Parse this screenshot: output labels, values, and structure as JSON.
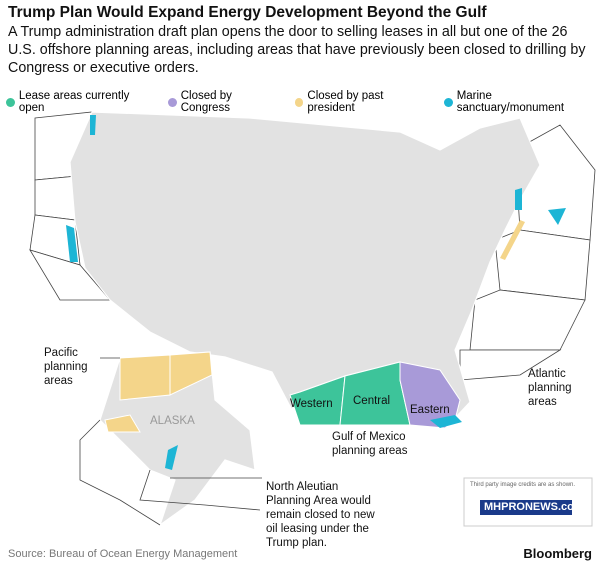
{
  "header": {
    "title": "Trump Plan Would Expand Energy Development Beyond the Gulf",
    "subtitle": "A Trump administration draft plan opens the door to selling leases in all but one of the 26 U.S. offshore planning areas, including areas that have previously been closed to drilling by Congress or executive orders."
  },
  "legend": [
    {
      "name": "Lease areas currently open",
      "color": "#3dc49a"
    },
    {
      "name": "Closed by Congress",
      "color": "#a89ad8"
    },
    {
      "name": "Closed by past president",
      "color": "#f4d58a"
    },
    {
      "name": "Marine sanctuary/monument",
      "color": "#1db5d5"
    }
  ],
  "map_labels": {
    "pacific": "Pacific planning areas",
    "alaska": "ALASKA",
    "western": "Western",
    "central": "Central",
    "eastern": "Eastern",
    "gulf": "Gulf of Mexico planning areas",
    "atlantic": "Atlantic planning areas",
    "north_aleutian": "North Aleutian Planning Area would remain closed to new oil leasing under the Trump plan."
  },
  "watermark": {
    "note": "Third party image credits are as shown.",
    "logo": "MHPRONEWS.com"
  },
  "footer": {
    "source": "Source: Bureau of Ocean Energy Management",
    "brand": "Bloomberg"
  }
}
